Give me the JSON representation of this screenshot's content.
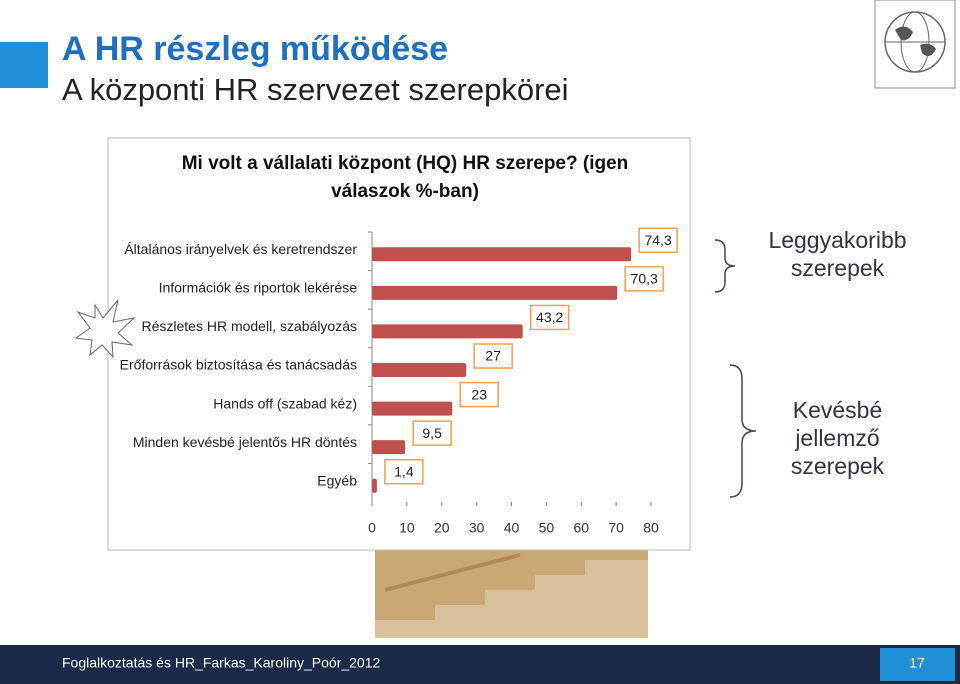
{
  "slide": {
    "title": "A HR részleg működése",
    "subtitle": "A központi HR szervezet szerepkörei",
    "note_top": "Leggyakoribb szerepek",
    "note_bottom": "Kevésbé jellemző szerepek",
    "footer": "Foglalkoztatás és HR_Farkas_Karoliny_Poór_2012",
    "page": "17"
  },
  "chart_data": {
    "type": "bar",
    "orientation": "horizontal",
    "title": "Mi volt a vállalati központ (HQ) HR szerepe? (igen válaszok %-ban)",
    "categories": [
      "Általános irányelvek és keretrendszer",
      "Információk és riportok lekérése",
      "Részletes HR modell, szabályozás",
      "Erőforrások biztosítása és tanácsadás",
      "Hands off (szabad kéz)",
      "Minden kevésbé jelentős HR döntés",
      "Egyéb"
    ],
    "values": [
      74.3,
      70.3,
      43.2,
      27,
      23,
      9.5,
      1.4
    ],
    "value_labels": [
      "74,3",
      "70,3",
      "43,2",
      "27",
      "23",
      "9,5",
      "1,4"
    ],
    "color": "#c0504d",
    "xlim": [
      0,
      80
    ],
    "xticks": [
      0,
      10,
      20,
      30,
      40,
      50,
      60,
      70,
      80
    ]
  }
}
